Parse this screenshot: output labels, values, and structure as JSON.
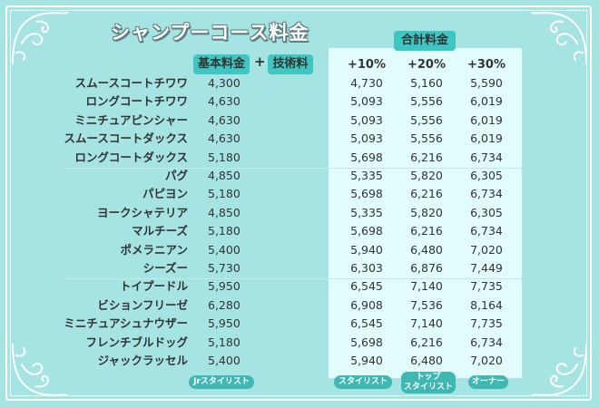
{
  "title": "シャンプーコース料金",
  "labels": {
    "total": "合計料金",
    "base": "基本料金",
    "plus": "+",
    "tech": "技術料"
  },
  "headers": [
    "+10%",
    "+20%",
    "+30%"
  ],
  "rows": [
    {
      "breed": "スムースコートチワワ",
      "base": "4,300",
      "p10": "4,730",
      "p20": "5,160",
      "p30": "5,590"
    },
    {
      "breed": "ロングコートチワワ",
      "base": "4,630",
      "p10": "5,093",
      "p20": "5,556",
      "p30": "6,019"
    },
    {
      "breed": "ミニチュアピンシャー",
      "base": "4,630",
      "p10": "5,093",
      "p20": "5,556",
      "p30": "6,019"
    },
    {
      "breed": "スムースコートダックス",
      "base": "4,630",
      "p10": "5,093",
      "p20": "5,556",
      "p30": "6,019"
    },
    {
      "breed": "ロングコートダックス",
      "base": "5,180",
      "p10": "5,698",
      "p20": "6,216",
      "p30": "6,734"
    },
    {
      "breed": "パグ",
      "base": "4,850",
      "p10": "5,335",
      "p20": "5,820",
      "p30": "6,305"
    },
    {
      "breed": "パピヨン",
      "base": "5,180",
      "p10": "5,698",
      "p20": "6,216",
      "p30": "6,734"
    },
    {
      "breed": "ヨークシャテリア",
      "base": "4,850",
      "p10": "5,335",
      "p20": "5,820",
      "p30": "6,305"
    },
    {
      "breed": "マルチーズ",
      "base": "5,180",
      "p10": "5,698",
      "p20": "6,216",
      "p30": "6,734"
    },
    {
      "breed": "ポメラニアン",
      "base": "5,400",
      "p10": "5,940",
      "p20": "6,480",
      "p30": "7,020"
    },
    {
      "breed": "シーズー",
      "base": "5,730",
      "p10": "6,303",
      "p20": "6,876",
      "p30": "7,449"
    },
    {
      "breed": "トイプードル",
      "base": "5,950",
      "p10": "6,545",
      "p20": "7,140",
      "p30": "7,735"
    },
    {
      "breed": "ビションフリーゼ",
      "base": "6,280",
      "p10": "6,908",
      "p20": "7,536",
      "p30": "8,164"
    },
    {
      "breed": "ミニチュアシュナウザー",
      "base": "5,950",
      "p10": "6,545",
      "p20": "7,140",
      "p30": "7,735"
    },
    {
      "breed": "フレンチブルドッグ",
      "base": "5,180",
      "p10": "5,698",
      "p20": "6,216",
      "p30": "6,734"
    },
    {
      "breed": "ジャックラッセル",
      "base": "5,400",
      "p10": "5,940",
      "p20": "6,480",
      "p30": "7,020"
    }
  ],
  "footer": {
    "jr": "Jrスタイリスト",
    "stylist": "スタイリスト",
    "top1": "トップ",
    "top2": "スタイリスト",
    "owner": "オーナー"
  },
  "colors": {
    "background": "#a6e4e3",
    "panel": "#e2fbfb",
    "pill": "#3fc6c2",
    "tag": "#3fb8b4"
  }
}
